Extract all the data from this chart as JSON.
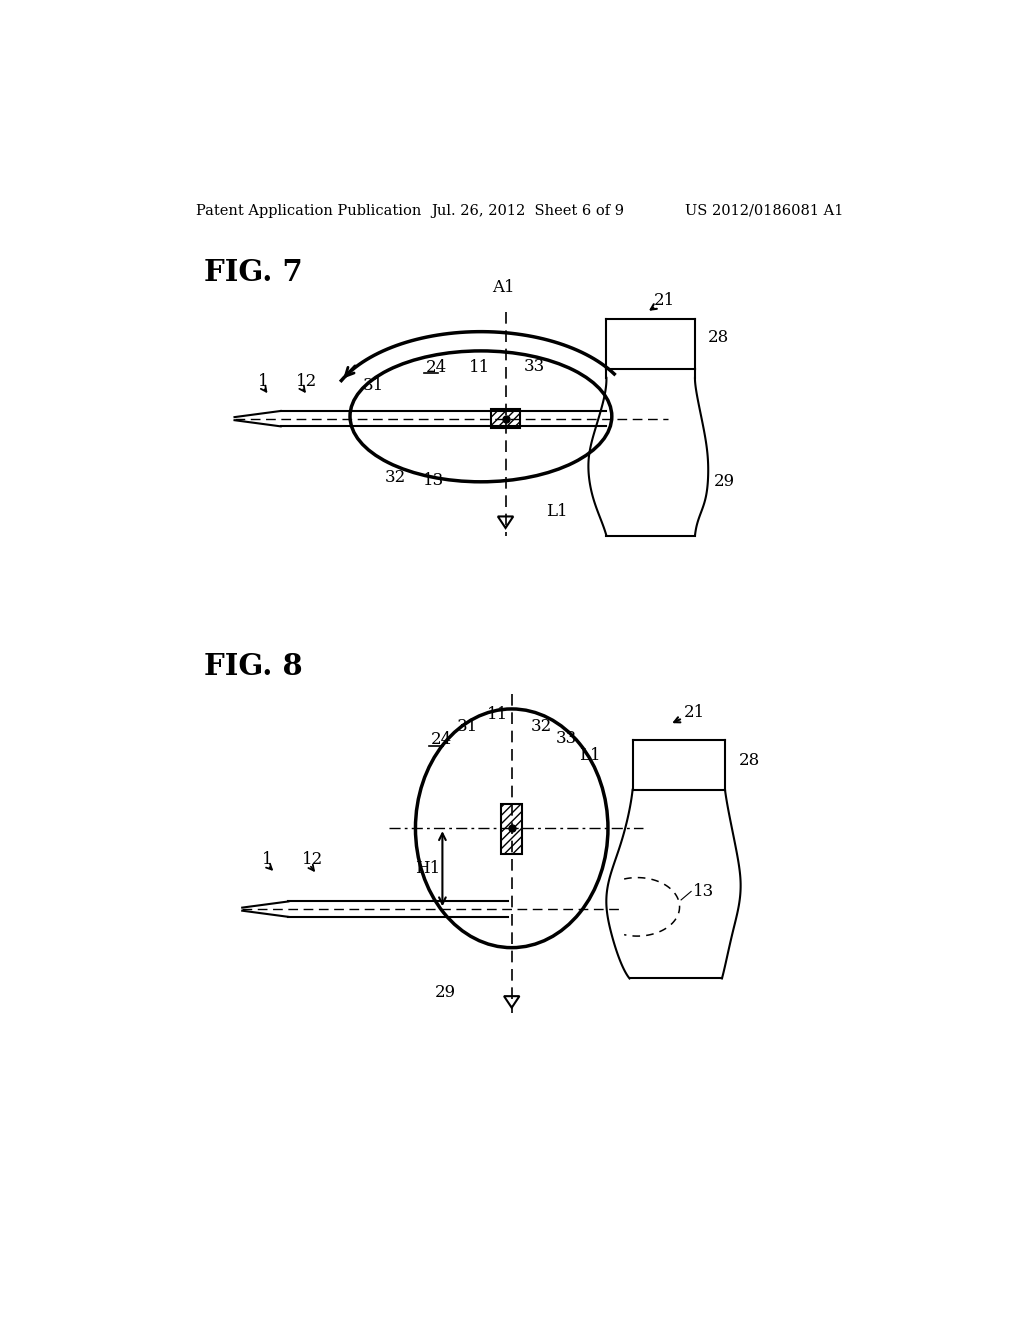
{
  "bg_color": "#ffffff",
  "header_left": "Patent Application Publication",
  "header_center": "Jul. 26, 2012  Sheet 6 of 9",
  "header_right": "US 2012/0186081 A1",
  "fig7_label": "FIG. 7",
  "fig8_label": "FIG. 8"
}
